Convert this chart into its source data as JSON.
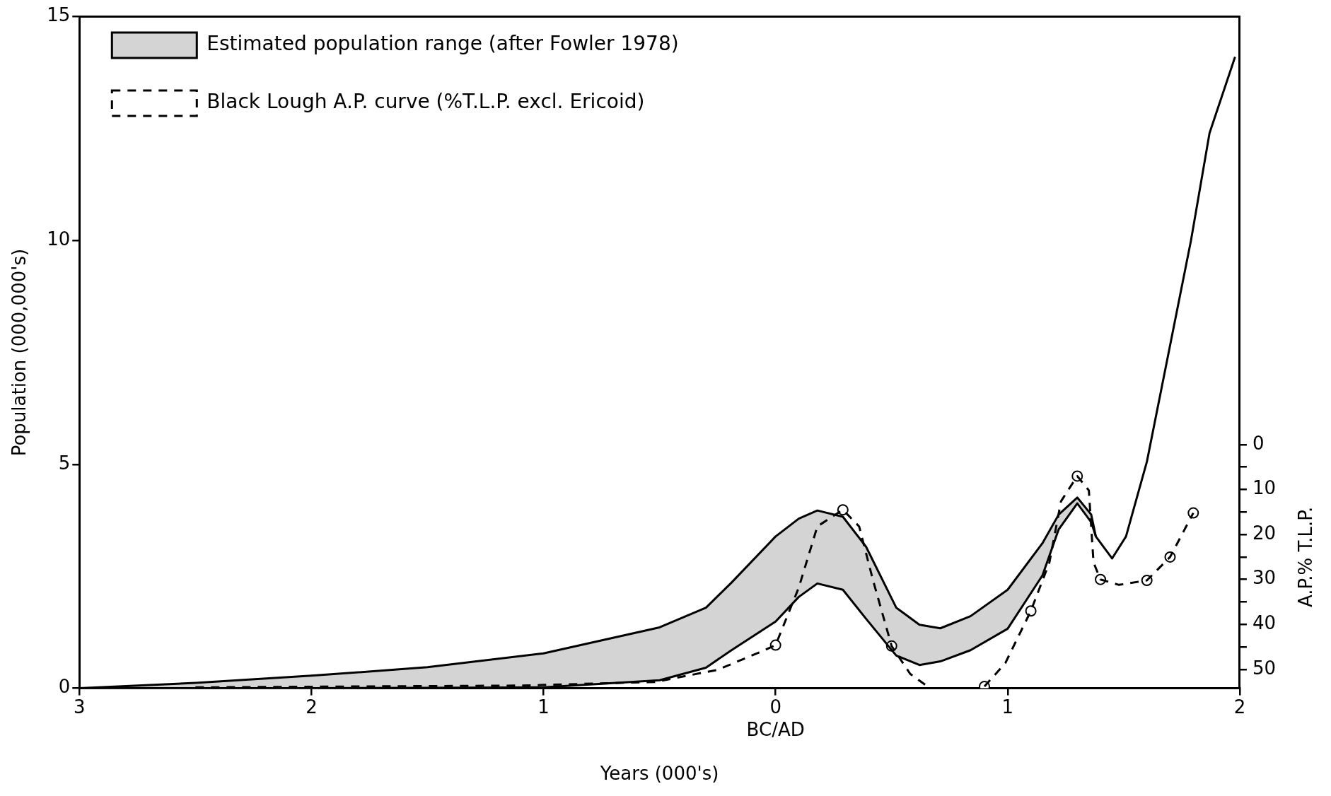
{
  "chart_data": {
    "type": "line",
    "xlabel": "Years (000's)",
    "ylabel": "Population (000,000's)",
    "y2label": "A.P.% T.L.P.",
    "x": [
      -3,
      -2.5,
      -2,
      -1.5,
      -1,
      -0.5,
      -0.3,
      -0.19,
      0,
      0.1,
      0.18,
      0.29,
      0.39,
      0.52,
      0.62,
      0.71,
      0.84,
      1.0,
      1.15,
      1.22,
      1.3,
      1.36,
      1.38,
      1.45,
      1.51,
      1.6,
      1.79,
      1.87,
      1.98
    ],
    "series": [
      {
        "name": "Estimated population range (after Fowler 1978)",
        "color": "#000000",
        "values": [
          0,
          0.12,
          0.28,
          0.47,
          0.78,
          1.36,
          1.8,
          2.36,
          3.39,
          3.79,
          3.97,
          3.83,
          3.16,
          1.8,
          1.42,
          1.34,
          1.61,
          2.2,
          3.24,
          3.88,
          4.26,
          3.88,
          3.39,
          2.9,
          3.39,
          5.06,
          10,
          12.4,
          14.1
        ],
        "upper": [
          0,
          0.12,
          0.28,
          0.47,
          0.78,
          1.36,
          1.8,
          2.36,
          3.39,
          3.79,
          3.97,
          3.83,
          3.16,
          1.8,
          1.42,
          1.34,
          1.61,
          2.2,
          3.24,
          3.88,
          4.26,
          3.88,
          3.39,
          null,
          null,
          null,
          null,
          null,
          null
        ],
        "lower": [
          0,
          0,
          0,
          0.01,
          0.02,
          0.18,
          0.46,
          0.85,
          1.49,
          2.04,
          2.34,
          2.2,
          1.55,
          0.73,
          0.52,
          0.6,
          0.85,
          1.33,
          2.52,
          3.55,
          4.13,
          3.71,
          3.39,
          null,
          null,
          null,
          null,
          null,
          null
        ]
      },
      {
        "color": "#000000",
        "values": [
          0,
          0,
          0,
          0.01,
          0.02,
          0.18,
          0.46,
          0.85,
          1.49,
          2.04,
          2.34,
          2.2,
          1.55,
          0.73,
          0.52,
          0.6,
          0.85,
          1.33,
          2.52,
          3.55,
          4.13,
          3.71,
          3.39,
          null,
          null,
          null,
          null,
          null,
          null
        ]
      },
      {
        "name": "Black Lough A.P. curve (%T.L.P. excl. Ericoid)",
        "color": "#000000",
        "axis": "y2",
        "line_style": "dashed",
        "marker": "none",
        "x": [
          -2.5,
          -1.1,
          -0.52,
          -0.25,
          -0.06,
          0,
          0.1,
          0.18,
          0.29,
          0.36,
          0.42,
          0.5,
          0.58,
          0.66,
          0.75,
          0.9,
          0.99,
          1.1,
          1.18,
          1.23,
          1.3,
          1.35,
          1.37,
          1.4,
          1.48,
          1.6,
          1.7,
          1.8
        ],
        "values": [
          54,
          53.6,
          52.8,
          50.1,
          46,
          44.6,
          31.8,
          18.2,
          14.5,
          18.2,
          30.2,
          44.8,
          51,
          54,
          null,
          53.8,
          48.6,
          37,
          26.2,
          12.6,
          7,
          10.2,
          26.2,
          30,
          31.2,
          30.2,
          25,
          15.2
        ]
      },
      {
        "type": "scatter",
        "color": "#000000",
        "axis": "y2",
        "marker": "circle",
        "x": [
          0,
          0.29,
          0.5,
          0.9,
          1.1,
          1.3,
          1.4,
          1.6,
          1.7,
          1.8
        ],
        "values": [
          44.6,
          14.5,
          44.8,
          53.8,
          37,
          7,
          30,
          30.2,
          25,
          15.2
        ]
      }
    ],
    "xlim": [
      -3,
      2
    ],
    "xticks": [
      {
        "value": -3,
        "label": "3"
      },
      {
        "value": -2,
        "label": "2"
      },
      {
        "value": -1,
        "label": "1"
      },
      0,
      1,
      2
    ],
    "ylim": [
      0,
      15
    ],
    "yticks": [
      0,
      5,
      10,
      15
    ],
    "y2lim": [
      54.2,
      -95.2
    ],
    "y2ticks": [
      0,
      {
        "value": 5,
        "label": null
      },
      10,
      {
        "value": 15,
        "label": null
      },
      20,
      {
        "value": 25,
        "label": null
      },
      30,
      {
        "value": 35,
        "label": null
      },
      40,
      {
        "value": 45,
        "label": null
      },
      50
    ],
    "annotations": [
      "BC/AD"
    ],
    "grid": false,
    "legend": "top"
  }
}
